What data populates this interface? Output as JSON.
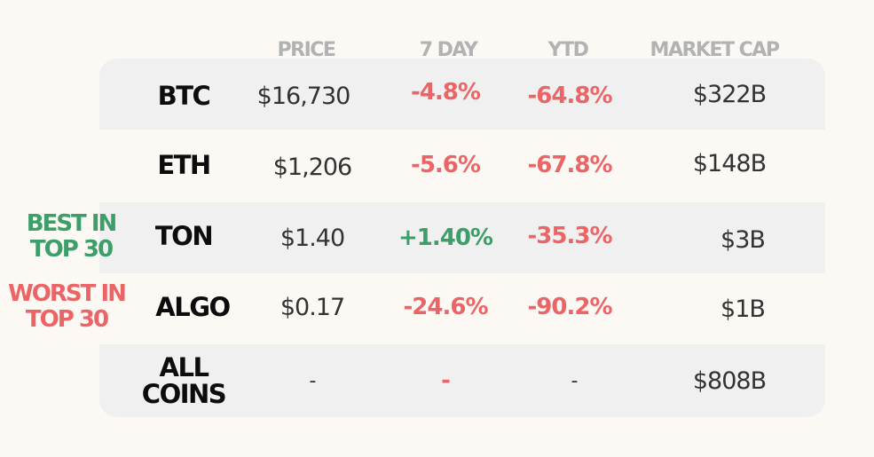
{
  "headers": {
    "price": "PRICE",
    "day7": "7 DAY",
    "ytd": "YTD",
    "mcap": "MARKET CAP"
  },
  "rows": [
    {
      "ticker": "BTC",
      "price": "$16,730",
      "day7": "-4.8%",
      "ytd": "-64.8%",
      "mcap": "$322B"
    },
    {
      "ticker": "ETH",
      "price": "$1,206",
      "day7": "-5.6%",
      "ytd": "-67.8%",
      "mcap": "$148B"
    },
    {
      "ticker": "TON",
      "price": "$1.40",
      "day7": "+1.40%",
      "ytd": "-35.3%",
      "mcap": "$3B"
    },
    {
      "ticker": "ALGO",
      "price": "$0.17",
      "day7": "-24.6%",
      "ytd": "-90.2%",
      "mcap": "$1B"
    },
    {
      "ticker_line1": "ALL",
      "ticker_line2": "COINS",
      "price": "-",
      "day7": "-",
      "ytd": "-",
      "mcap": "$808B"
    }
  ],
  "notes": {
    "best_line1": "BEST IN",
    "best_line2": "TOP 30",
    "worst_line1": "WORST IN",
    "worst_line2": "TOP 30"
  },
  "colors": {
    "negative": "#ec6566",
    "positive": "#3c9f6a",
    "header": "#b2b2b2",
    "row_shade": "#f0f0f0",
    "background": "#fcf9f4"
  }
}
